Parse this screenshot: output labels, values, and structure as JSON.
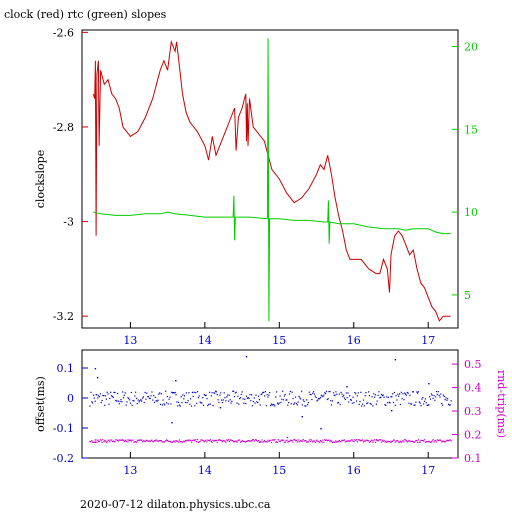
{
  "page": {
    "title": "clock (red) rtc (green) slopes",
    "footer": "2020-07-12 dilaton.physics.ubc.ca"
  },
  "colors": {
    "clock": "#cc0000",
    "rtc": "#00cc00",
    "offset": "#0000cc",
    "rndtrip": "#cc00cc",
    "axis": "#000000"
  },
  "chart_data": [
    {
      "type": "line",
      "title": "clock (red) rtc (green) slopes",
      "xlim": [
        12.35,
        17.4
      ],
      "x_ticks": [
        13,
        14,
        15,
        16,
        17
      ],
      "ylabel_left": "clockslope",
      "ylim_left": [
        -3.225,
        -2.595
      ],
      "y_ticks_left": [
        "-2.6",
        "-2.8",
        "-3",
        "-3.2"
      ],
      "y_tick_values_left": [
        -2.6,
        -2.8,
        -3.0,
        -3.2
      ],
      "ylim_right": [
        3.0,
        21.0
      ],
      "y_ticks_right": [
        "5",
        "10",
        "15",
        "20"
      ],
      "y_tick_values_right": [
        5,
        10,
        15,
        20
      ],
      "series": [
        {
          "name": "clock",
          "axis": "left",
          "color": "#cc0000",
          "points": [
            [
              12.5,
              -2.73
            ],
            [
              12.52,
              -2.74
            ],
            [
              12.53,
              -2.66
            ],
            [
              12.54,
              -3.03
            ],
            [
              12.55,
              -2.69
            ],
            [
              12.57,
              -2.66
            ],
            [
              12.58,
              -2.84
            ],
            [
              12.6,
              -2.68
            ],
            [
              12.65,
              -2.71
            ],
            [
              12.7,
              -2.7
            ],
            [
              12.75,
              -2.73
            ],
            [
              12.8,
              -2.74
            ],
            [
              12.85,
              -2.76
            ],
            [
              12.9,
              -2.8
            ],
            [
              12.95,
              -2.81
            ],
            [
              13.0,
              -2.82
            ],
            [
              13.1,
              -2.81
            ],
            [
              13.2,
              -2.78
            ],
            [
              13.3,
              -2.74
            ],
            [
              13.4,
              -2.68
            ],
            [
              13.45,
              -2.66
            ],
            [
              13.5,
              -2.68
            ],
            [
              13.55,
              -2.62
            ],
            [
              13.6,
              -2.64
            ],
            [
              13.62,
              -2.62
            ],
            [
              13.65,
              -2.66
            ],
            [
              13.7,
              -2.73
            ],
            [
              13.75,
              -2.77
            ],
            [
              13.8,
              -2.79
            ],
            [
              13.85,
              -2.8
            ],
            [
              13.9,
              -2.81
            ],
            [
              14.0,
              -2.84
            ],
            [
              14.05,
              -2.87
            ],
            [
              14.1,
              -2.82
            ],
            [
              14.15,
              -2.86
            ],
            [
              14.2,
              -2.84
            ],
            [
              14.3,
              -2.8
            ],
            [
              14.4,
              -2.76
            ],
            [
              14.42,
              -2.85
            ],
            [
              14.45,
              -2.78
            ],
            [
              14.5,
              -2.76
            ],
            [
              14.55,
              -2.73
            ],
            [
              14.56,
              -2.83
            ],
            [
              14.57,
              -2.75
            ],
            [
              14.58,
              -2.84
            ],
            [
              14.6,
              -2.74
            ],
            [
              14.65,
              -2.8
            ],
            [
              14.7,
              -2.81
            ],
            [
              14.75,
              -2.82
            ],
            [
              14.8,
              -2.83
            ],
            [
              14.85,
              -2.86
            ],
            [
              14.9,
              -2.89
            ],
            [
              15.0,
              -2.91
            ],
            [
              15.1,
              -2.94
            ],
            [
              15.2,
              -2.96
            ],
            [
              15.3,
              -2.95
            ],
            [
              15.4,
              -2.93
            ],
            [
              15.5,
              -2.9
            ],
            [
              15.55,
              -2.88
            ],
            [
              15.6,
              -2.89
            ],
            [
              15.65,
              -2.86
            ],
            [
              15.7,
              -2.9
            ],
            [
              15.75,
              -2.95
            ],
            [
              15.8,
              -2.99
            ],
            [
              15.85,
              -3.02
            ],
            [
              15.9,
              -3.06
            ],
            [
              15.95,
              -3.08
            ],
            [
              16.0,
              -3.08
            ],
            [
              16.1,
              -3.08
            ],
            [
              16.2,
              -3.1
            ],
            [
              16.3,
              -3.11
            ],
            [
              16.35,
              -3.11
            ],
            [
              16.4,
              -3.08
            ],
            [
              16.45,
              -3.1
            ],
            [
              16.48,
              -3.15
            ],
            [
              16.5,
              -3.07
            ],
            [
              16.55,
              -3.03
            ],
            [
              16.6,
              -3.02
            ],
            [
              16.65,
              -3.03
            ],
            [
              16.7,
              -3.05
            ],
            [
              16.75,
              -3.07
            ],
            [
              16.8,
              -3.06
            ],
            [
              16.85,
              -3.1
            ],
            [
              16.9,
              -3.13
            ],
            [
              16.95,
              -3.14
            ],
            [
              17.0,
              -3.16
            ],
            [
              17.05,
              -3.18
            ],
            [
              17.1,
              -3.19
            ],
            [
              17.15,
              -3.21
            ],
            [
              17.2,
              -3.2
            ],
            [
              17.3,
              -3.2
            ]
          ]
        },
        {
          "name": "rtc",
          "axis": "right",
          "color": "#00cc00",
          "points": [
            [
              12.5,
              10.0
            ],
            [
              12.6,
              9.9
            ],
            [
              12.8,
              9.8
            ],
            [
              13.0,
              9.8
            ],
            [
              13.2,
              9.9
            ],
            [
              13.4,
              9.9
            ],
            [
              13.5,
              10.0
            ],
            [
              13.6,
              9.9
            ],
            [
              13.8,
              9.8
            ],
            [
              14.0,
              9.7
            ],
            [
              14.2,
              9.7
            ],
            [
              14.38,
              9.7
            ],
            [
              14.39,
              11.0
            ],
            [
              14.4,
              8.3
            ],
            [
              14.41,
              9.7
            ],
            [
              14.6,
              9.7
            ],
            [
              14.84,
              9.6
            ],
            [
              14.85,
              20.5
            ],
            [
              14.86,
              3.4
            ],
            [
              14.87,
              9.6
            ],
            [
              15.0,
              9.6
            ],
            [
              15.2,
              9.5
            ],
            [
              15.4,
              9.5
            ],
            [
              15.6,
              9.4
            ],
            [
              15.65,
              9.4
            ],
            [
              15.66,
              10.7
            ],
            [
              15.67,
              8.1
            ],
            [
              15.68,
              9.4
            ],
            [
              15.8,
              9.3
            ],
            [
              16.0,
              9.3
            ],
            [
              16.2,
              9.1
            ],
            [
              16.4,
              9.0
            ],
            [
              16.6,
              9.0
            ],
            [
              16.7,
              8.9
            ],
            [
              16.8,
              9.0
            ],
            [
              17.0,
              9.0
            ],
            [
              17.1,
              8.8
            ],
            [
              17.2,
              8.7
            ],
            [
              17.3,
              8.7
            ]
          ]
        }
      ]
    },
    {
      "type": "scatter",
      "xlim": [
        12.35,
        17.4
      ],
      "x_ticks": [
        13,
        14,
        15,
        16,
        17
      ],
      "ylabel_left": "offset(ms)",
      "ylim_left": [
        -0.2,
        0.16
      ],
      "y_ticks_left": [
        "0.1",
        "0",
        "-0.1",
        "-0.2"
      ],
      "y_tick_values_left": [
        0.1,
        0.0,
        -0.1,
        -0.2
      ],
      "ylabel_right": "rnd-trip(ms)",
      "ylim_right": [
        0.1,
        0.56
      ],
      "y_ticks_right": [
        "0.5",
        "0.4",
        "0.3",
        "0.2",
        "0.1"
      ],
      "y_tick_values_right": [
        0.5,
        0.4,
        0.3,
        0.2,
        0.1
      ],
      "series": [
        {
          "name": "offset",
          "axis": "left",
          "color": "#0000cc",
          "x_range": [
            12.45,
            17.3
          ],
          "baseline": 0.0,
          "spread": 0.025,
          "outliers": [
            [
              12.52,
              0.1
            ],
            [
              12.55,
              0.07
            ],
            [
              13.6,
              0.06
            ],
            [
              14.2,
              -0.03
            ],
            [
              14.55,
              0.14
            ],
            [
              15.3,
              -0.06
            ],
            [
              15.9,
              0.04
            ],
            [
              16.5,
              -0.04
            ],
            [
              16.55,
              0.13
            ],
            [
              17.0,
              0.05
            ],
            [
              15.55,
              -0.1
            ],
            [
              13.55,
              -0.08
            ]
          ]
        },
        {
          "name": "rnd-trip",
          "axis": "right",
          "color": "#cc00cc",
          "x_range": [
            12.45,
            17.3
          ],
          "baseline": 0.175,
          "spread": 0.006,
          "outliers": [
            [
              12.52,
              0.17
            ],
            [
              15.1,
              0.19
            ],
            [
              16.3,
              0.18
            ]
          ]
        }
      ]
    }
  ]
}
